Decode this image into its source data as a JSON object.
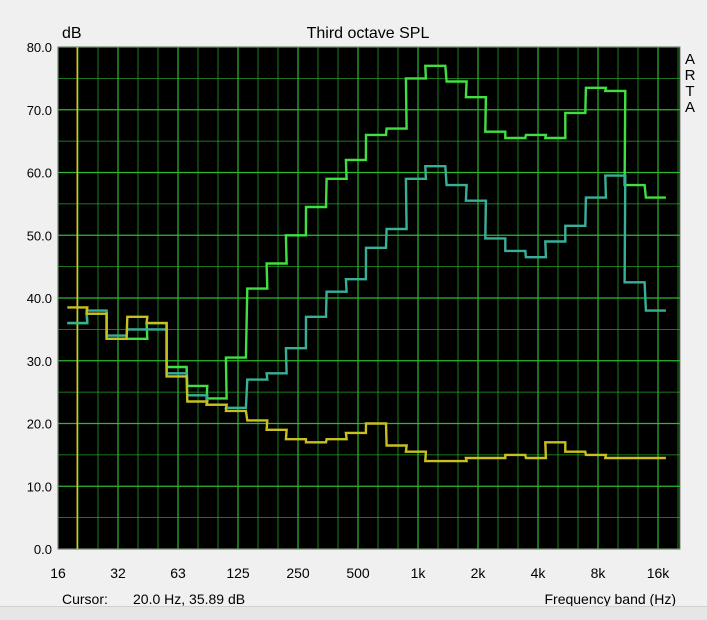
{
  "chart": {
    "title": "Third octave SPL",
    "y_unit": "dB",
    "x_axis_label": "Frequency band (Hz)",
    "cursor_label": "Cursor:",
    "cursor_value": "20.0 Hz, 35.89 dB",
    "brand_letters": [
      "A",
      "R",
      "T",
      "A"
    ]
  },
  "colors": {
    "plot_background": "#000000",
    "grid": "#2db82d",
    "cursor_line": "#e0c020",
    "series_1": "#40e040",
    "series_2": "#38b098",
    "series_3": "#c8c020"
  },
  "chart_data": {
    "type": "line",
    "step": true,
    "title": "Third octave SPL",
    "xlabel": "Frequency band (Hz)",
    "ylabel": "dB",
    "xscale": "log",
    "xlim": [
      16,
      20000
    ],
    "ylim": [
      0,
      80
    ],
    "grid": true,
    "cursor_x": 20,
    "x_tick_labels": [
      "16",
      "32",
      "63",
      "125",
      "250",
      "500",
      "1k",
      "2k",
      "4k",
      "8k",
      "16k"
    ],
    "y_tick_labels": [
      "0.0",
      "10.0",
      "20.0",
      "30.0",
      "40.0",
      "50.0",
      "60.0",
      "70.0",
      "80.0"
    ],
    "y_ticks": [
      0,
      10,
      20,
      30,
      40,
      50,
      60,
      70,
      80
    ],
    "x": [
      20,
      25,
      31.5,
      40,
      50,
      63,
      80,
      100,
      125,
      160,
      200,
      250,
      315,
      400,
      500,
      630,
      800,
      1000,
      1250,
      1600,
      2000,
      2500,
      3150,
      4000,
      5000,
      6300,
      8000,
      10000,
      12500,
      16000
    ],
    "series": [
      {
        "values": [
          36.0,
          37.5,
          33.5,
          33.5,
          36.0,
          29.0,
          26.0,
          24.0,
          30.5,
          41.5,
          45.5,
          50.0,
          54.5,
          59.0,
          62.0,
          66.0,
          67.0,
          75.0,
          77.0,
          74.5,
          72.0,
          66.5,
          65.5,
          66.0,
          65.5,
          69.5,
          73.5,
          73.0,
          58.0,
          56.0
        ],
        "color": "#40e040"
      },
      {
        "values": [
          36.0,
          38.0,
          34.0,
          35.0,
          35.0,
          28.0,
          24.5,
          23.0,
          22.5,
          27.0,
          28.0,
          32.0,
          37.0,
          41.0,
          43.0,
          48.0,
          51.0,
          59.0,
          61.0,
          58.0,
          55.5,
          49.5,
          47.5,
          46.5,
          49.0,
          51.5,
          56.0,
          59.5,
          42.5,
          38.0
        ],
        "color": "#38b098"
      },
      {
        "values": [
          38.5,
          37.5,
          33.5,
          37.0,
          36.0,
          27.5,
          23.5,
          23.0,
          22.0,
          20.5,
          19.0,
          17.5,
          17.0,
          17.5,
          18.5,
          20.0,
          16.5,
          15.5,
          14.0,
          14.0,
          14.5,
          14.5,
          15.0,
          14.5,
          17.0,
          15.5,
          15.0,
          14.5,
          14.5,
          14.5
        ],
        "color": "#c8c020"
      }
    ]
  }
}
